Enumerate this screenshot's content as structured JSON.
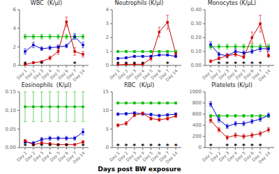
{
  "xlabel": "Days post BW exposure",
  "chart_data": [
    {
      "type": "line",
      "title": "WBC  (K/μl)",
      "categories": [
        "Day 1",
        "Day 2",
        "Day 3",
        "Day 4",
        "Day 5",
        "Day 6",
        "Day 7",
        "Day 14"
      ],
      "ylim": [
        0,
        6
      ],
      "yticks": [
        0,
        2,
        4,
        6
      ],
      "grid": false,
      "marker": "square",
      "series": [
        {
          "color": "#00bb00",
          "values": [
            3.1,
            3.1,
            3.1,
            3.1,
            3.1,
            3.1,
            3.1,
            3.1
          ],
          "errors": [
            0.25,
            0.25,
            0.25,
            0.25,
            0.25,
            0.25,
            0.25,
            0.25
          ]
        },
        {
          "color": "#0000cc",
          "values": [
            1.5,
            2.2,
            1.8,
            1.9,
            2.0,
            2.1,
            3.1,
            2.2
          ],
          "errors": [
            0.3,
            0.3,
            0.2,
            0.2,
            0.2,
            0.2,
            0.3,
            0.3
          ]
        },
        {
          "color": "#cc0000",
          "values": [
            0.1,
            0.3,
            0.4,
            0.8,
            1.5,
            4.7,
            1.5,
            1.2
          ],
          "errors": [
            0.05,
            0.1,
            0.1,
            0.2,
            0.3,
            0.5,
            0.4,
            0.3
          ]
        }
      ],
      "annotations": [
        {
          "text": "*",
          "x": "Day 1"
        },
        {
          "text": "*",
          "x": "Day 3"
        },
        {
          "text": "*",
          "x": "Day 7"
        }
      ]
    },
    {
      "type": "line",
      "title": "Neutrophils (K/μl)",
      "categories": [
        "Day 1",
        "Day 2",
        "Day 3",
        "Day 4",
        "Day 5",
        "Day 6",
        "Day 7",
        "Day 14"
      ],
      "ylim": [
        0,
        4
      ],
      "yticks": [
        0,
        1,
        2,
        3,
        4
      ],
      "grid": false,
      "marker": "square",
      "series": [
        {
          "color": "#00bb00",
          "values": [
            1.0,
            1.0,
            1.0,
            1.0,
            1.0,
            1.0,
            1.0,
            1.0
          ],
          "errors": [
            0.08,
            0.08,
            0.08,
            0.08,
            0.08,
            0.08,
            0.08,
            0.08
          ]
        },
        {
          "color": "#0000cc",
          "values": [
            0.5,
            0.55,
            0.65,
            0.65,
            0.65,
            0.75,
            0.75,
            0.65
          ],
          "errors": [
            0.08,
            0.08,
            0.08,
            0.08,
            0.08,
            0.08,
            0.08,
            0.08
          ]
        },
        {
          "color": "#cc0000",
          "values": [
            0.05,
            0.08,
            0.08,
            0.08,
            0.5,
            2.4,
            3.1,
            0.85
          ],
          "errors": [
            0.02,
            0.03,
            0.03,
            0.03,
            0.18,
            0.35,
            0.5,
            0.15
          ]
        }
      ],
      "annotations": [
        {
          "text": "*",
          "x": "Day 1"
        },
        {
          "text": "*",
          "x": "Day 2"
        },
        {
          "text": "*",
          "x": "Day 3"
        },
        {
          "text": "*",
          "x": "Day 4"
        },
        {
          "text": "*",
          "x": "Day 7"
        }
      ]
    },
    {
      "type": "line",
      "title": "Monocytes (K/μL)",
      "categories": [
        "Day 1",
        "Day 2",
        "Day 3",
        "Day 4",
        "Day 5",
        "Day 6",
        "Day 7",
        "Day 14"
      ],
      "ylim": [
        0.0,
        0.4
      ],
      "yticks": [
        {
          "value": 0.0,
          "label": "0.00"
        },
        {
          "value": 0.1,
          "label": "0.10"
        },
        {
          "value": 0.2,
          "label": "0.20"
        },
        {
          "value": 0.3,
          "label": "0.30"
        },
        {
          "value": 0.4,
          "label": "0.40"
        }
      ],
      "grid": false,
      "marker": "square",
      "series": [
        {
          "color": "#00bb00",
          "values": [
            0.135,
            0.135,
            0.135,
            0.135,
            0.135,
            0.135,
            0.135,
            0.135
          ],
          "errors": [
            0.018,
            0.018,
            0.018,
            0.018,
            0.018,
            0.018,
            0.018,
            0.018
          ]
        },
        {
          "color": "#0000cc",
          "values": [
            0.15,
            0.08,
            0.07,
            0.1,
            0.09,
            0.1,
            0.12,
            0.12
          ],
          "errors": [
            0.02,
            0.015,
            0.015,
            0.02,
            0.015,
            0.015,
            0.02,
            0.02
          ]
        },
        {
          "color": "#cc0000",
          "values": [
            0.03,
            0.05,
            0.07,
            0.08,
            0.06,
            0.2,
            0.3,
            0.07
          ],
          "errors": [
            0.01,
            0.01,
            0.015,
            0.015,
            0.01,
            0.04,
            0.06,
            0.01
          ]
        }
      ],
      "annotations": [
        {
          "text": "*",
          "x": "Day 2"
        },
        {
          "text": "*",
          "x": "Day 3"
        },
        {
          "text": "*",
          "x": "Day 4"
        },
        {
          "text": "*",
          "x": "Day 5"
        },
        {
          "text": "*",
          "x": "Day 6"
        },
        {
          "text": "*",
          "x": "Day 7"
        }
      ]
    },
    {
      "type": "line",
      "title": "Eosinophils  (K/μl)",
      "categories": [
        "Day 1",
        "Day 2",
        "Day 3",
        "Day 4",
        "Day 5",
        "Day 6",
        "Day 7",
        "Day 14"
      ],
      "ylim": [
        0,
        0.15
      ],
      "yticks": [
        {
          "value": 0.0,
          "label": "0.00"
        },
        {
          "value": 0.05,
          "label": "0.05"
        },
        {
          "value": 0.1,
          "label": "0.10"
        },
        {
          "value": 0.15,
          "label": "0.15"
        }
      ],
      "grid": false,
      "marker": "square",
      "series": [
        {
          "color": "#00bb00",
          "values": [
            0.11,
            0.11,
            0.11,
            0.11,
            0.11,
            0.11,
            0.11,
            0.11
          ],
          "errors": [
            0.04,
            0.04,
            0.04,
            0.04,
            0.04,
            0.04,
            0.04,
            0.04
          ]
        },
        {
          "color": "#0000cc",
          "values": [
            0.015,
            0.012,
            0.022,
            0.025,
            0.025,
            0.025,
            0.025,
            0.042
          ],
          "errors": [
            0.004,
            0.004,
            0.005,
            0.005,
            0.005,
            0.005,
            0.005,
            0.008
          ]
        },
        {
          "color": "#cc0000",
          "values": [
            0.018,
            0.008,
            0.012,
            0.01,
            0.008,
            0.008,
            0.008,
            0.015
          ],
          "errors": [
            0.004,
            0.003,
            0.004,
            0.004,
            0.003,
            0.003,
            0.003,
            0.004
          ]
        }
      ],
      "annotations": [
        {
          "text": "*",
          "x": "Day 1"
        },
        {
          "text": "*",
          "x": "Day 2"
        },
        {
          "text": "*",
          "x": "Day 3"
        },
        {
          "text": "*",
          "x": "Day 4"
        },
        {
          "text": "*",
          "x": "Day 5"
        },
        {
          "text": "*",
          "x": "Day 6"
        },
        {
          "text": "*",
          "x": "Day 14"
        }
      ]
    },
    {
      "type": "line",
      "title": "RBC  (K/μl)",
      "categories": [
        "Day 1",
        "Day 2",
        "Day 3",
        "Day 4",
        "Day 5",
        "Day 6",
        "Day 7",
        "Day 14"
      ],
      "ylim": [
        0,
        15
      ],
      "yticks": [
        0,
        5,
        10,
        15
      ],
      "grid": false,
      "marker": "square",
      "series": [
        {
          "color": "#00bb00",
          "values": [
            12.0,
            12.0,
            12.0,
            12.0,
            12.0,
            12.0,
            12.0,
            12.0
          ],
          "errors": [
            0.25,
            0.25,
            0.25,
            0.25,
            0.25,
            0.25,
            0.25,
            0.25
          ]
        },
        {
          "color": "#0000cc",
          "values": [
            9.0,
            9.1,
            9.3,
            9.1,
            8.9,
            8.6,
            8.8,
            9.0
          ],
          "errors": [
            0.35,
            0.35,
            0.35,
            0.35,
            0.35,
            0.35,
            0.35,
            0.35
          ]
        },
        {
          "color": "#cc0000",
          "values": [
            6.0,
            6.5,
            8.7,
            9.2,
            7.8,
            7.5,
            7.8,
            8.5
          ],
          "errors": [
            0.4,
            0.5,
            0.4,
            0.4,
            0.4,
            0.4,
            0.4,
            0.4
          ]
        }
      ],
      "annotations": [
        {
          "text": "*",
          "x": "Day 1"
        },
        {
          "text": "*",
          "x": "Day 2"
        },
        {
          "text": "*",
          "x": "Day 3"
        },
        {
          "text": "*",
          "x": "Day 4"
        },
        {
          "text": "*",
          "x": "Day 5"
        },
        {
          "text": "*",
          "x": "Day 6"
        },
        {
          "text": "*",
          "x": "Day 7"
        },
        {
          "text": "*",
          "x": "Day 14"
        }
      ]
    },
    {
      "type": "line",
      "title": "Platelets (K/μl)",
      "categories": [
        "Day 1",
        "Day 2",
        "Day 3",
        "Day 4",
        "Day 5",
        "Day 6",
        "Day 7",
        "Day 14"
      ],
      "ylim": [
        0,
        1000
      ],
      "yticks": [
        0,
        200,
        400,
        600,
        800,
        1000
      ],
      "grid": false,
      "marker": "square",
      "series": [
        {
          "color": "#00bb00",
          "values": [
            570,
            570,
            570,
            570,
            570,
            570,
            570,
            570
          ],
          "errors": [
            25,
            25,
            25,
            25,
            25,
            25,
            25,
            25
          ]
        },
        {
          "color": "#0000cc",
          "values": [
            780,
            500,
            380,
            430,
            430,
            470,
            510,
            580
          ],
          "errors": [
            45,
            45,
            40,
            40,
            40,
            40,
            40,
            40
          ]
        },
        {
          "color": "#cc0000",
          "values": [
            490,
            320,
            180,
            220,
            200,
            220,
            250,
            320
          ],
          "errors": [
            45,
            40,
            35,
            40,
            40,
            40,
            40,
            40
          ]
        }
      ],
      "annotations": [
        {
          "text": "*",
          "x": "Day 1"
        },
        {
          "text": "*",
          "x": "Day 3"
        },
        {
          "text": "*",
          "x": "Day 4"
        },
        {
          "text": "*",
          "x": "Day 5"
        },
        {
          "text": "*",
          "x": "Day 6"
        },
        {
          "text": "*",
          "x": "Day 7"
        }
      ]
    }
  ]
}
